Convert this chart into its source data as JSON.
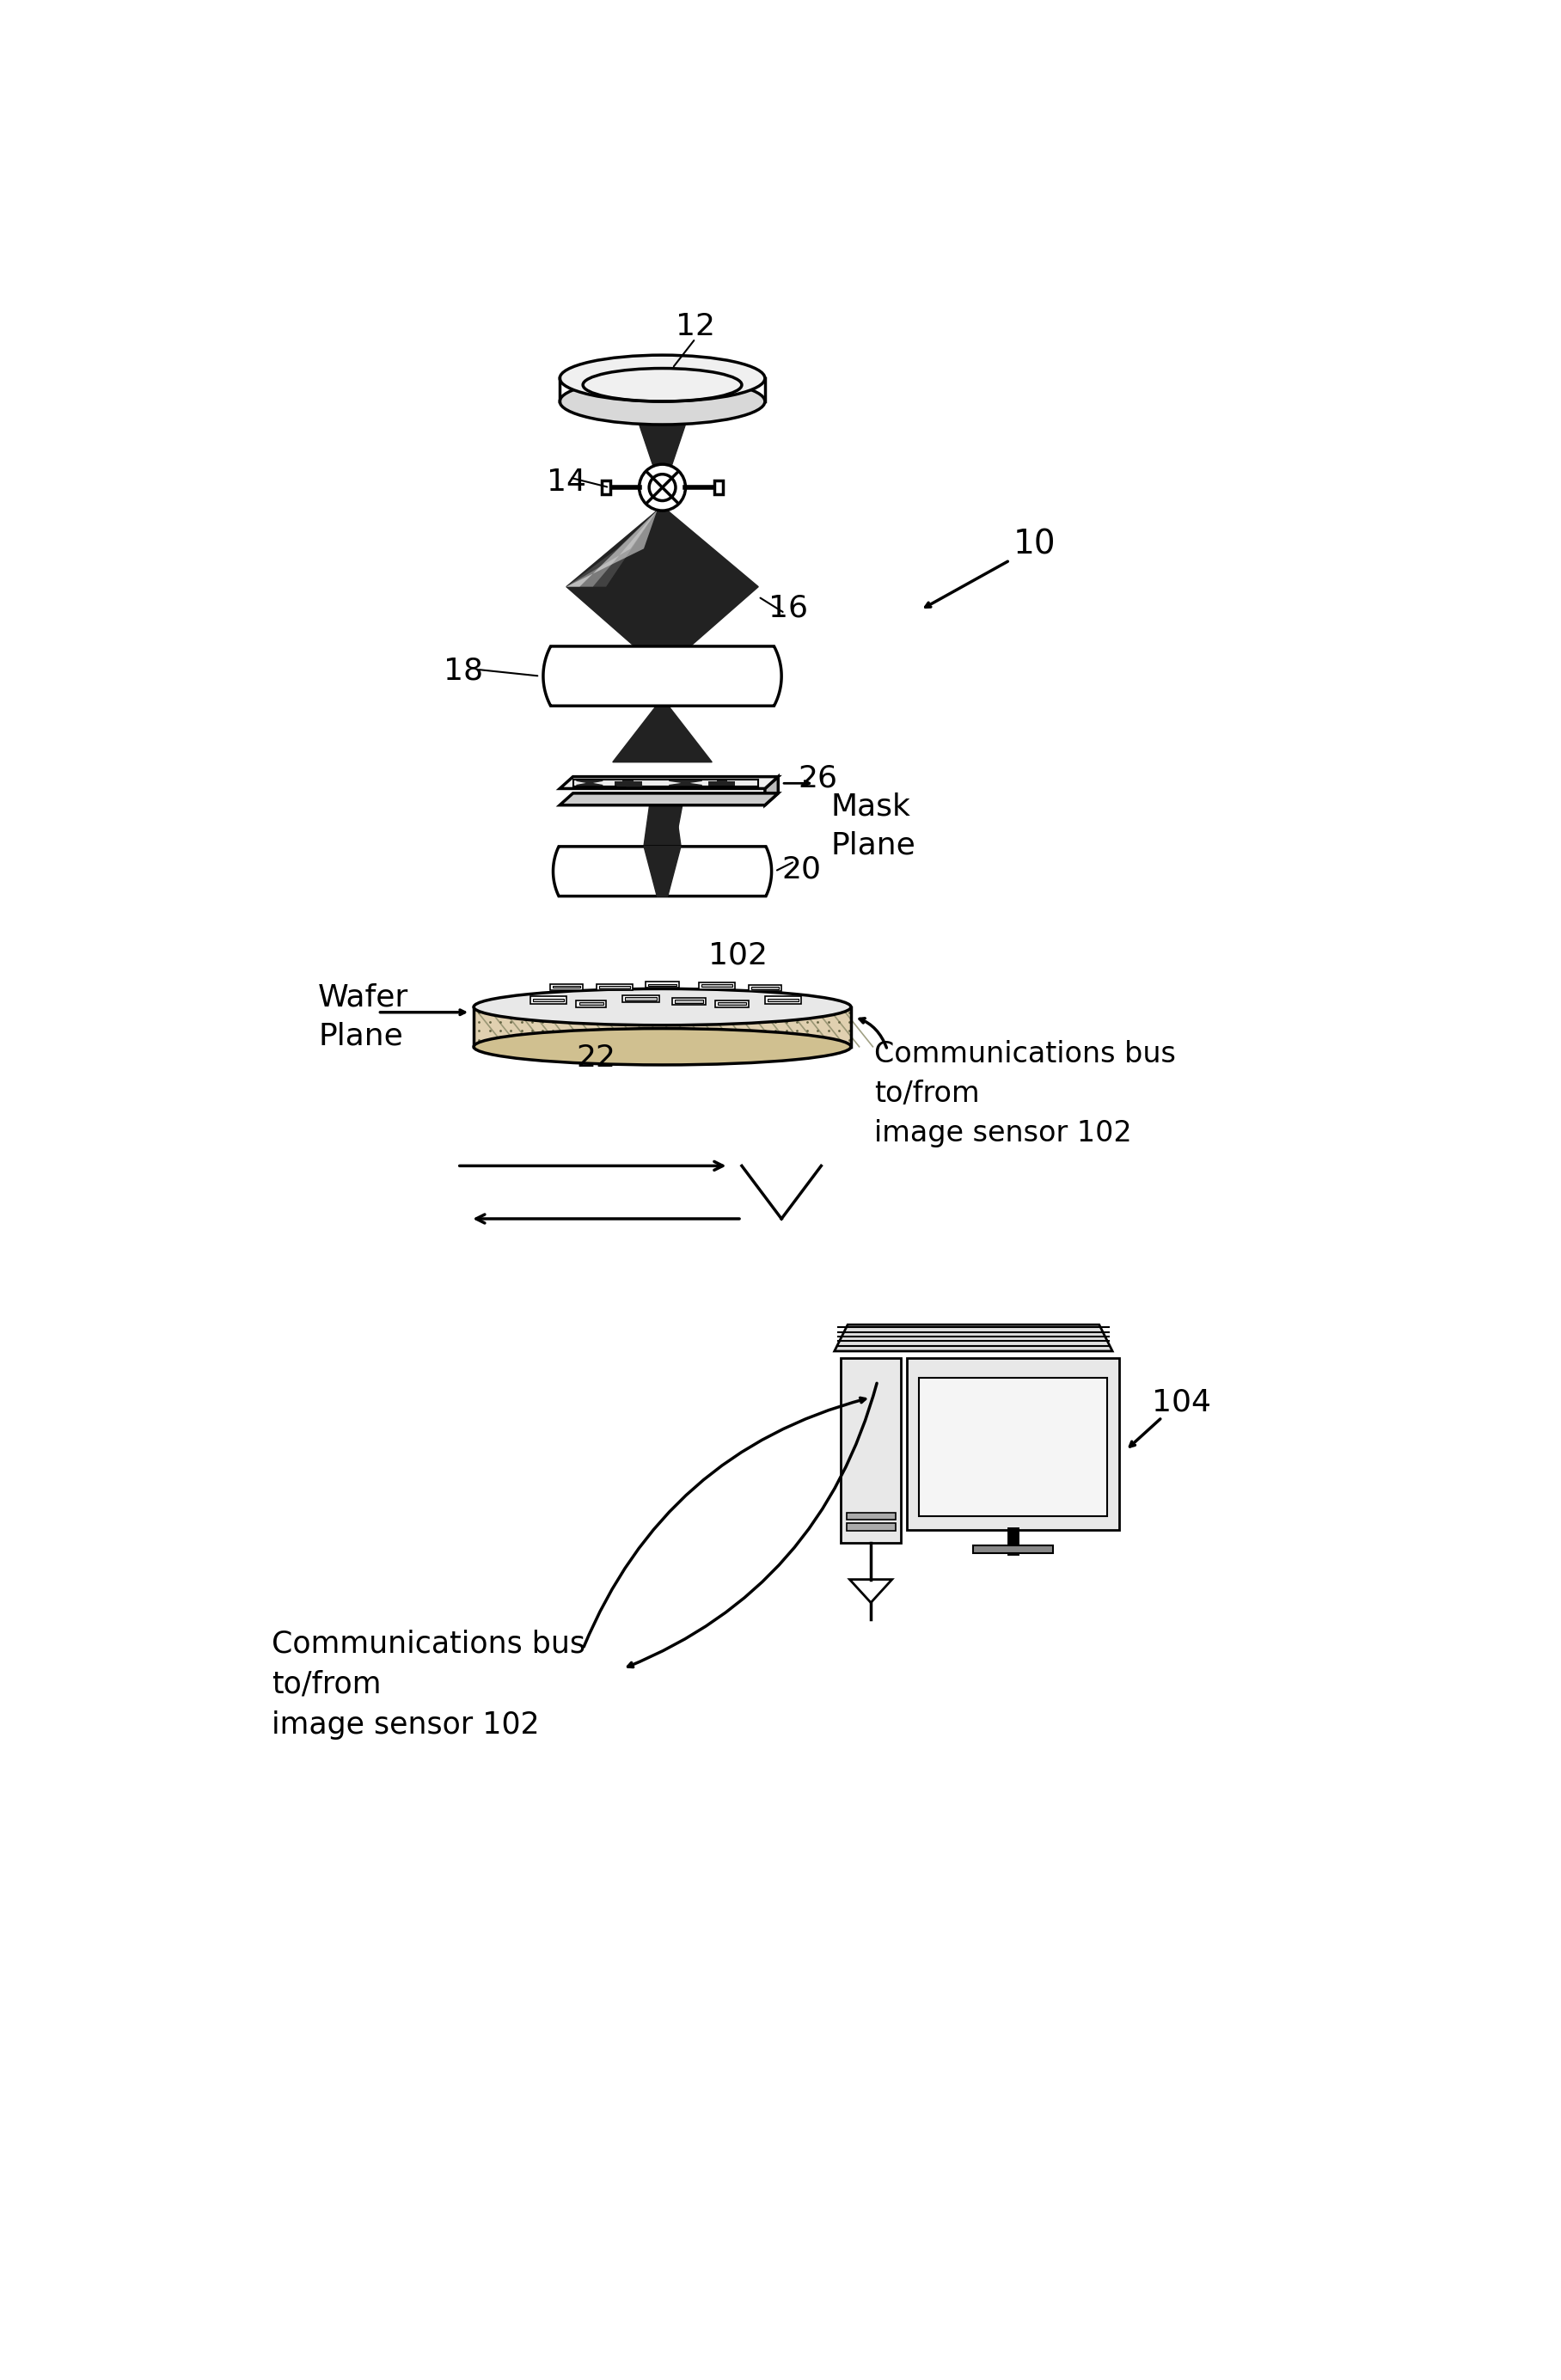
{
  "bg_color": "#ffffff",
  "label_12": "12",
  "label_14": "14",
  "label_16": "16",
  "label_18": "18",
  "label_20": "20",
  "label_22": "22",
  "label_26": "26",
  "label_102": "102",
  "label_104": "104",
  "label_10": "10",
  "text_mask_plane": "Mask\nPlane",
  "text_wafer_plane": "Wafer\nPlane",
  "text_comm_bus_upper": "Communications bus\nto/from\nimage sensor 102",
  "text_comm_bus_lower": "Communications bus\nto/from\nimage sensor 102",
  "line_color": "#000000",
  "fill_dark": "#222222",
  "fill_gray": "#aaaaaa",
  "fill_white": "#ffffff"
}
